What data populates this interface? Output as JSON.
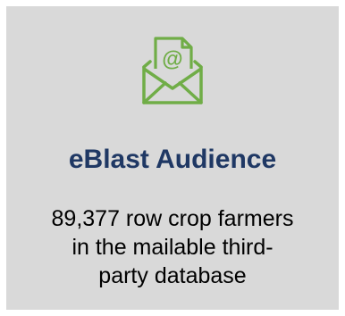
{
  "card": {
    "icon": "envelope-at-icon",
    "title": "eBlast Audience",
    "description_lines": [
      "89,377 row crop farmers",
      "in the mailable third-",
      "party database"
    ]
  },
  "colors": {
    "background": "#d9d9d9",
    "title": "#1f3864",
    "icon": "#70ad47",
    "text": "#000000"
  }
}
